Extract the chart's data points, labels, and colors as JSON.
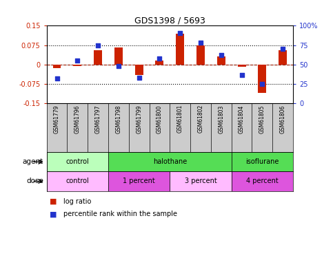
{
  "title": "GDS1398 / 5693",
  "samples": [
    "GSM61779",
    "GSM61796",
    "GSM61797",
    "GSM61798",
    "GSM61799",
    "GSM61800",
    "GSM61801",
    "GSM61802",
    "GSM61803",
    "GSM61804",
    "GSM61805",
    "GSM61806"
  ],
  "log_ratio": [
    -0.015,
    -0.005,
    0.055,
    0.065,
    -0.04,
    0.015,
    0.12,
    0.075,
    0.03,
    -0.01,
    -0.11,
    0.055
  ],
  "percentile_rank": [
    32,
    55,
    75,
    48,
    33,
    58,
    91,
    78,
    62,
    36,
    25,
    70
  ],
  "ylim_left": [
    -0.15,
    0.15
  ],
  "ylim_right": [
    0,
    100
  ],
  "yticks_left": [
    -0.15,
    -0.075,
    0,
    0.075,
    0.15
  ],
  "yticks_right": [
    0,
    25,
    50,
    75,
    100
  ],
  "ytick_labels_left": [
    "-0.15",
    "-0.075",
    "0",
    "0.075",
    "0.15"
  ],
  "ytick_labels_right": [
    "0",
    "25",
    "50",
    "75",
    "100%"
  ],
  "hlines_dotted": [
    0.075,
    -0.075
  ],
  "hline_red_dash": 0.0,
  "hline_black_solid": 0.0,
  "bar_color": "#cc2200",
  "dot_color": "#2233cc",
  "agent_groups": [
    {
      "label": "control",
      "start": 0,
      "end": 3,
      "color": "#bbffbb"
    },
    {
      "label": "halothane",
      "start": 3,
      "end": 9,
      "color": "#55dd55"
    },
    {
      "label": "isoflurane",
      "start": 9,
      "end": 12,
      "color": "#55dd55"
    }
  ],
  "dose_groups": [
    {
      "label": "control",
      "start": 0,
      "end": 3,
      "color": "#ffbbff"
    },
    {
      "label": "1 percent",
      "start": 3,
      "end": 6,
      "color": "#dd55dd"
    },
    {
      "label": "3 percent",
      "start": 6,
      "end": 9,
      "color": "#ffbbff"
    },
    {
      "label": "4 percent",
      "start": 9,
      "end": 12,
      "color": "#dd55dd"
    }
  ],
  "legend_bar_label": "log ratio",
  "legend_dot_label": "percentile rank within the sample",
  "agent_label": "agent",
  "dose_label": "dose",
  "background_color": "#ffffff"
}
